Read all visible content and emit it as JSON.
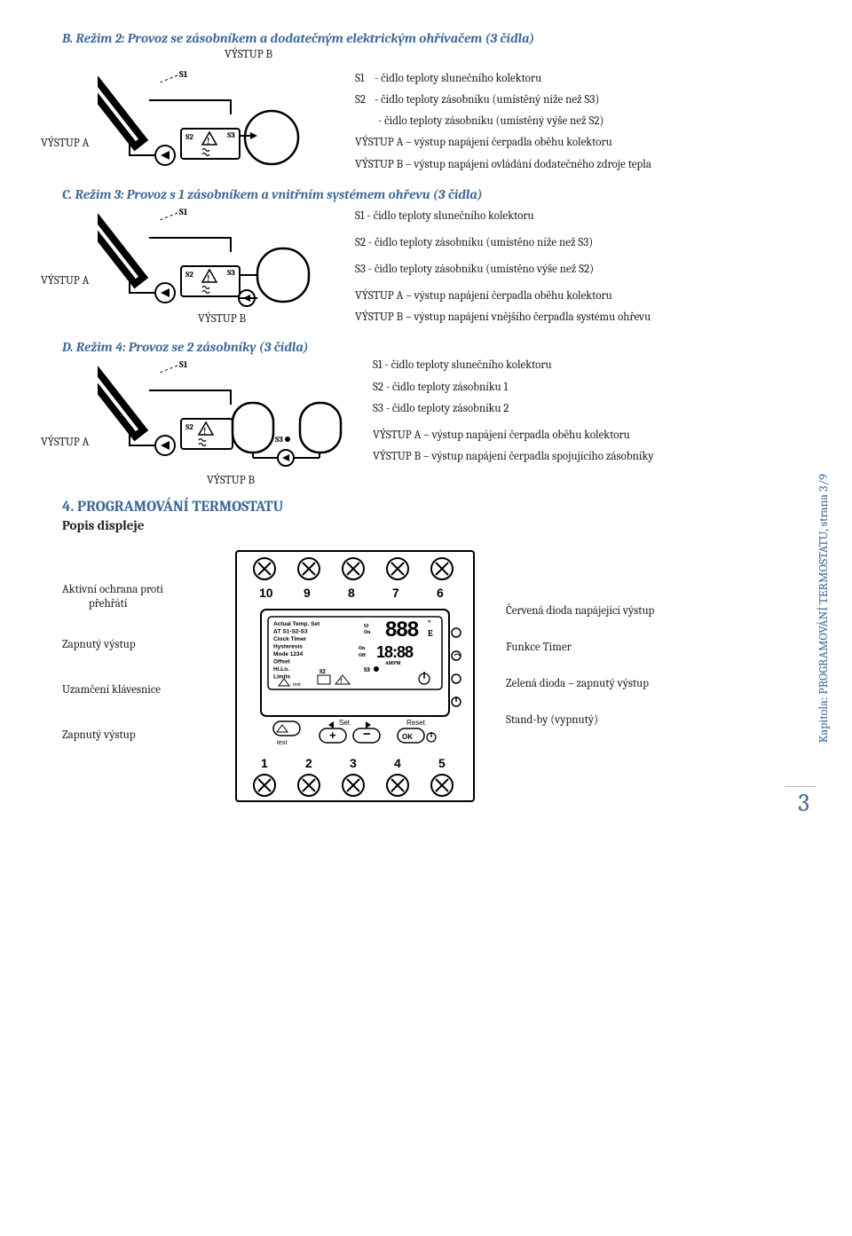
{
  "colors": {
    "accent": "#3e6998",
    "text": "#222222",
    "bg": "#ffffff"
  },
  "fonts": {
    "body_family": "Cambria, Georgia, serif",
    "title_size_pt": 15,
    "body_size_pt": 13
  },
  "sectionB": {
    "title": "B. Režim 2: Provoz se zásobníkem a dodatečným elektrickým ohřívačem (3 čidla)",
    "top_label": "VÝSTUP B",
    "vystup_a": "VÝSTUP A",
    "legend": {
      "s1": "- čidlo teploty slunečního kolektoru",
      "s2": "- čidlo teploty zásobníku (umístěný níže než S3)",
      "extra": "- čidlo teploty zásobníku (umístěný výše než S2)",
      "outA": "VÝSTUP A – výstup napájení čerpadla oběhu kolektoru",
      "outB": "VÝSTUP B – výstup napájení ovládání dodatečného zdroje tepla"
    }
  },
  "sectionC": {
    "title": "C. Režim 3: Provoz s 1 zásobníkem a vnitřním systémem ohřevu (3 čidla)",
    "vystup_a": "VÝSTUP A",
    "vystup_b": "VÝSTUP B",
    "legend": {
      "s1": "S1 - čidlo teploty slunečního kolektoru",
      "s2": "S2 - čidlo teploty zásobníku (umístěno níže než S3)",
      "s3": "S3 - čidlo teploty zásobníku (umístěno výše než S2)",
      "outA": "VÝSTUP A – výstup napájení čerpadla oběhu kolektoru",
      "outB": "VÝSTUP B – výstup napájení vnějšího čerpadla systému ohřevu"
    }
  },
  "sectionD": {
    "title": "D. Režim 4: Provoz se 2 zásobníky  (3 čidla)",
    "vystup_a": "VÝSTUP A",
    "vystup_b": "VÝSTUP B",
    "legend": {
      "s1": "S1 - čidlo teploty slunečního kolektoru",
      "s2": "S2 - čidlo teploty zásobníku 1",
      "s3": "S3 - čidlo teploty zásobníku 2",
      "outA": "VÝSTUP A – výstup napájení čerpadla oběhu kolektoru",
      "outB": "VÝSTUP B – výstup napájení čerpadla spojujícího zásobníky"
    }
  },
  "section4": {
    "title": "4. PROGRAMOVÁNÍ TERMOSTATU",
    "subtitle": "Popis displeje",
    "left": {
      "l1a": "Aktivní ochrana proti",
      "l1b": "přehřátí",
      "l2": "Zapnutý výstup",
      "l3": "Uzamčení klávesnice",
      "l4": "Zapnutý výstup"
    },
    "right": {
      "r1": "Červená dioda napájející výstup",
      "r2": "Funkce Timer",
      "r3": "Zelená dioda – zapnutý výstup",
      "r4": "Stand-by (vypnutý)"
    },
    "thermostat": {
      "top_numbers": [
        "10",
        "9",
        "8",
        "7",
        "6"
      ],
      "bottom_numbers": [
        "1",
        "2",
        "3",
        "4",
        "5"
      ],
      "lcd_lines": [
        "Actual Temp. Set",
        "ΔT S1-S2-S3",
        "Clock Timer",
        "Hysteresis",
        "Mode 1234",
        "Offset",
        "Hi.Lo.",
        "Limits"
      ],
      "lcd_big": "888",
      "lcd_time": "18:88",
      "lcd_unit": "°E",
      "lcd_onoff": "On\nOff",
      "lcd_ampm": "AMPM",
      "btn_test": "test",
      "btn_set": "Set",
      "btn_plus": "+",
      "btn_minus": "−",
      "btn_reset": "Reset",
      "btn_ok": "OK"
    }
  },
  "side": "Kapitola: PROGRAMOVÁNÍ TERMOSTATU, strana 3/9",
  "page": "3",
  "diagram_labels": {
    "S1": "S1",
    "S2": "S2",
    "S3": "S3"
  }
}
